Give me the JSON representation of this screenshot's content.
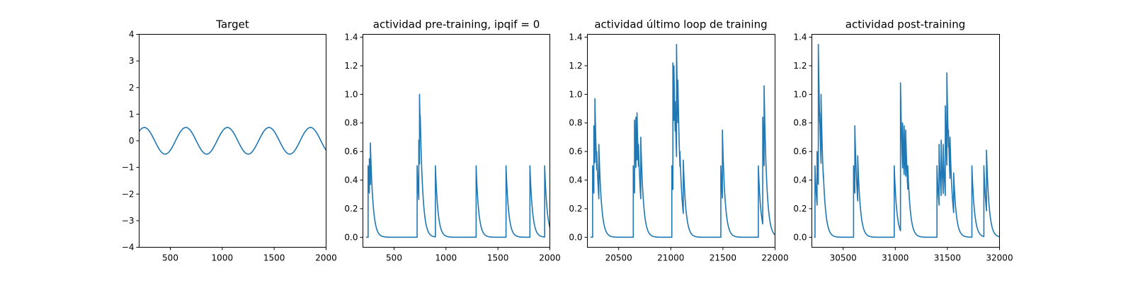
{
  "colors": {
    "series": "#1f77b4",
    "axes": "#000000",
    "background": "#ffffff"
  },
  "chart_data": [
    {
      "type": "line",
      "title": "Target",
      "xlim": [
        200,
        2000
      ],
      "ylim": [
        -4,
        4
      ],
      "xticks": [
        500,
        1000,
        1500,
        2000
      ],
      "yticks": [
        -4,
        -3,
        -2,
        -1,
        0,
        1,
        2,
        3,
        4
      ],
      "series": [
        {
          "kind": "sine",
          "amplitude": 0.5,
          "period": 400,
          "phase_peak_at": 250,
          "x_start": 200,
          "x_end": 2000
        }
      ]
    },
    {
      "type": "line",
      "title": "actividad pre-training, ipqif = 0",
      "xlim": [
        200,
        2000
      ],
      "ylim": [
        -0.07,
        1.42
      ],
      "xticks": [
        500,
        1000,
        1500,
        2000
      ],
      "yticks": [
        0.0,
        0.2,
        0.4,
        0.6,
        0.8,
        1.0,
        1.2,
        1.4
      ],
      "decay_tau": 25,
      "x_start": 230,
      "spikes": [
        [
          250,
          0.5
        ],
        [
          262,
          0.55
        ],
        [
          272,
          0.66
        ],
        [
          722,
          0.5
        ],
        [
          738,
          0.68
        ],
        [
          745,
          1.0
        ],
        [
          752,
          0.85
        ],
        [
          898,
          0.5
        ],
        [
          1290,
          0.5
        ],
        [
          1578,
          0.5
        ],
        [
          1808,
          0.5
        ],
        [
          1950,
          0.5
        ]
      ]
    },
    {
      "type": "line",
      "title": "actividad último loop de training",
      "xlim": [
        20200,
        22000
      ],
      "ylim": [
        -0.07,
        1.42
      ],
      "xticks": [
        20500,
        21000,
        21500,
        22000
      ],
      "yticks": [
        0.0,
        0.2,
        0.4,
        0.6,
        0.8,
        1.0,
        1.2,
        1.4
      ],
      "decay_tau": 25,
      "x_start": 20230,
      "spikes": [
        [
          20250,
          0.5
        ],
        [
          20262,
          0.78
        ],
        [
          20272,
          0.97
        ],
        [
          20290,
          0.6
        ],
        [
          20310,
          0.65
        ],
        [
          20640,
          0.5
        ],
        [
          20652,
          0.82
        ],
        [
          20665,
          0.84
        ],
        [
          20676,
          0.87
        ],
        [
          20690,
          0.65
        ],
        [
          20712,
          0.7
        ],
        [
          21010,
          0.5
        ],
        [
          21020,
          1.22
        ],
        [
          21030,
          1.2
        ],
        [
          21042,
          0.95
        ],
        [
          21055,
          1.35
        ],
        [
          21068,
          1.1
        ],
        [
          21088,
          0.6
        ],
        [
          21120,
          0.54
        ],
        [
          21480,
          0.5
        ],
        [
          21495,
          0.75
        ],
        [
          21840,
          0.5
        ],
        [
          21882,
          0.84
        ],
        [
          21895,
          1.06
        ]
      ]
    },
    {
      "type": "line",
      "title": "actividad post-training",
      "xlim": [
        30200,
        32000
      ],
      "ylim": [
        -0.07,
        1.42
      ],
      "xticks": [
        30500,
        31000,
        31500,
        32000
      ],
      "yticks": [
        0.0,
        0.2,
        0.4,
        0.6,
        0.8,
        1.0,
        1.2,
        1.4
      ],
      "decay_tau": 25,
      "x_start": 30220,
      "spikes": [
        [
          30230,
          0.5
        ],
        [
          30250,
          0.6
        ],
        [
          30262,
          1.35
        ],
        [
          30275,
          0.87
        ],
        [
          30288,
          1.0
        ],
        [
          30310,
          0.45
        ],
        [
          30600,
          0.5
        ],
        [
          30612,
          0.78
        ],
        [
          30640,
          0.57
        ],
        [
          30990,
          0.5
        ],
        [
          31050,
          1.08
        ],
        [
          31070,
          0.8
        ],
        [
          31085,
          0.78
        ],
        [
          31100,
          0.75
        ],
        [
          31120,
          0.5
        ],
        [
          31400,
          0.5
        ],
        [
          31420,
          0.65
        ],
        [
          31440,
          0.68
        ],
        [
          31460,
          0.65
        ],
        [
          31480,
          0.92
        ],
        [
          31495,
          1.15
        ],
        [
          31510,
          0.75
        ],
        [
          31525,
          0.7
        ],
        [
          31560,
          0.45
        ],
        [
          31735,
          0.5
        ],
        [
          31850,
          0.5
        ],
        [
          31875,
          0.61
        ]
      ]
    }
  ]
}
